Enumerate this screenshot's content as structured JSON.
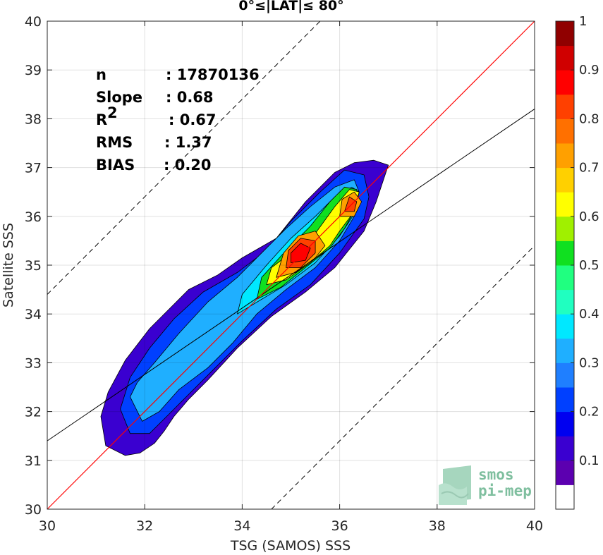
{
  "chart_data": {
    "type": "density-contour",
    "title": "0°≤|LAT|≤ 80°",
    "xlabel": "TSG (SAMOS) SSS",
    "ylabel": "Satellite SSS",
    "xlim": [
      30,
      40
    ],
    "ylim": [
      30,
      40
    ],
    "xticks": [
      "30",
      "32",
      "34",
      "36",
      "38",
      "40"
    ],
    "yticks": [
      "30",
      "31",
      "32",
      "33",
      "34",
      "35",
      "36",
      "37",
      "38",
      "39",
      "40"
    ],
    "grid": true,
    "stats": [
      {
        "label": "n",
        "value": ": 17870136"
      },
      {
        "label": "Slope",
        "value": ": 0.68"
      },
      {
        "label": "R",
        "sup": "2",
        "value": ": 0.67"
      },
      {
        "label": "RMS",
        "value": ": 1.37"
      },
      {
        "label": "BIAS",
        "value": ": 0.20"
      }
    ],
    "lines": {
      "identity": {
        "slope": 1,
        "intercept": 0,
        "color": "#ff0000"
      },
      "fit": {
        "slope": 0.68,
        "intercept": 11.0,
        "color": "#000000"
      },
      "upper_bound": {
        "slope": 1,
        "intercept": 4.4,
        "style": "dashed"
      },
      "lower_bound": {
        "slope": 1,
        "intercept": -4.6,
        "style": "dashed"
      }
    },
    "colorbar": {
      "range": [
        0,
        1
      ],
      "ticks": [
        "0.1",
        "0.2",
        "0.3",
        "0.4",
        "0.5",
        "0.6",
        "0.7",
        "0.8",
        "0.9",
        "1"
      ],
      "colors": [
        "#ffffff",
        "#5c00b0",
        "#3a00d0",
        "#0000f0",
        "#0040ff",
        "#1f7fff",
        "#1fafff",
        "#00e8ff",
        "#20ffc0",
        "#20ff80",
        "#10e020",
        "#a0f000",
        "#ffff00",
        "#ffd000",
        "#ffa000",
        "#ff7000",
        "#ff4000",
        "#ff0000",
        "#d00000",
        "#900000"
      ]
    },
    "contours": [
      {
        "level": 0.05,
        "color": "#3a00d0",
        "points": [
          [
            31.1,
            31.9
          ],
          [
            31.2,
            31.3
          ],
          [
            31.6,
            31.1
          ],
          [
            31.9,
            31.15
          ],
          [
            32.2,
            31.35
          ],
          [
            32.4,
            31.6
          ],
          [
            32.6,
            31.9
          ],
          [
            32.9,
            32.25
          ],
          [
            33.3,
            32.65
          ],
          [
            33.9,
            33.3
          ],
          [
            34.6,
            33.95
          ],
          [
            35.3,
            34.45
          ],
          [
            35.9,
            34.95
          ],
          [
            36.5,
            35.7
          ],
          [
            36.75,
            36.3
          ],
          [
            36.95,
            36.9
          ],
          [
            37.0,
            37.05
          ],
          [
            36.7,
            37.15
          ],
          [
            36.3,
            37.1
          ],
          [
            35.9,
            36.9
          ],
          [
            35.3,
            36.3
          ],
          [
            34.7,
            35.55
          ],
          [
            34.0,
            35.15
          ],
          [
            33.5,
            34.8
          ],
          [
            32.9,
            34.5
          ],
          [
            32.6,
            34.2
          ],
          [
            32.1,
            33.7
          ],
          [
            31.6,
            33.05
          ],
          [
            31.25,
            32.4
          ]
        ]
      },
      {
        "level": 0.2,
        "color": "#0040ff",
        "points": [
          [
            31.5,
            32.05
          ],
          [
            31.7,
            31.55
          ],
          [
            32.1,
            31.55
          ],
          [
            32.5,
            31.95
          ],
          [
            32.9,
            32.35
          ],
          [
            33.4,
            32.85
          ],
          [
            34.0,
            33.45
          ],
          [
            34.7,
            34.1
          ],
          [
            35.4,
            34.6
          ],
          [
            36.0,
            35.25
          ],
          [
            36.5,
            35.95
          ],
          [
            36.6,
            36.4
          ],
          [
            36.5,
            36.85
          ],
          [
            36.1,
            36.95
          ],
          [
            35.6,
            36.5
          ],
          [
            35.0,
            35.9
          ],
          [
            34.5,
            35.3
          ],
          [
            33.9,
            34.85
          ],
          [
            33.2,
            34.45
          ],
          [
            32.6,
            33.9
          ],
          [
            32.1,
            33.3
          ],
          [
            31.7,
            32.7
          ]
        ]
      },
      {
        "level": 0.3,
        "color": "#1fafff",
        "points": [
          [
            31.7,
            32.3
          ],
          [
            31.95,
            31.8
          ],
          [
            32.3,
            32.0
          ],
          [
            32.7,
            32.45
          ],
          [
            33.3,
            32.9
          ],
          [
            33.8,
            33.4
          ],
          [
            34.3,
            34.0
          ],
          [
            34.9,
            34.5
          ],
          [
            35.5,
            34.95
          ],
          [
            36.0,
            35.5
          ],
          [
            36.3,
            36.0
          ],
          [
            36.4,
            36.5
          ],
          [
            36.3,
            36.75
          ],
          [
            35.9,
            36.6
          ],
          [
            35.4,
            36.2
          ],
          [
            34.9,
            35.75
          ],
          [
            34.4,
            35.25
          ],
          [
            33.9,
            34.75
          ],
          [
            33.3,
            34.25
          ],
          [
            32.7,
            33.6
          ],
          [
            32.2,
            33.0
          ],
          [
            31.85,
            32.6
          ]
        ]
      },
      {
        "level": 0.4,
        "color": "#00e8ff",
        "points": [
          [
            33.9,
            34.0
          ],
          [
            34.4,
            34.3
          ],
          [
            34.9,
            34.6
          ],
          [
            35.5,
            35.05
          ],
          [
            36.0,
            35.6
          ],
          [
            36.3,
            36.05
          ],
          [
            36.4,
            36.5
          ],
          [
            36.25,
            36.6
          ],
          [
            35.9,
            36.4
          ],
          [
            35.5,
            36.0
          ],
          [
            35.0,
            35.55
          ],
          [
            34.5,
            35.0
          ],
          [
            34.0,
            34.4
          ]
        ]
      },
      {
        "level": 0.5,
        "color": "#10e020",
        "points": [
          [
            34.3,
            34.3
          ],
          [
            34.8,
            34.55
          ],
          [
            35.3,
            34.95
          ],
          [
            35.8,
            35.35
          ],
          [
            36.1,
            35.75
          ],
          [
            36.35,
            36.2
          ],
          [
            36.35,
            36.55
          ],
          [
            36.1,
            36.6
          ],
          [
            35.8,
            36.3
          ],
          [
            35.4,
            35.8
          ],
          [
            34.9,
            35.3
          ],
          [
            34.4,
            34.75
          ]
        ]
      },
      {
        "level": 0.6,
        "color": "#ffff00",
        "points": [
          [
            34.5,
            34.6
          ],
          [
            34.9,
            34.7
          ],
          [
            35.4,
            35.05
          ],
          [
            35.8,
            35.4
          ],
          [
            36.0,
            35.7
          ],
          [
            36.3,
            36.1
          ],
          [
            36.4,
            36.5
          ],
          [
            36.2,
            36.55
          ],
          [
            35.9,
            36.2
          ],
          [
            35.5,
            35.65
          ],
          [
            35.0,
            35.25
          ],
          [
            34.6,
            34.95
          ]
        ]
      },
      {
        "level": 0.7,
        "color": "#ffa000",
        "points": [
          [
            34.7,
            34.75
          ],
          [
            35.1,
            34.85
          ],
          [
            35.5,
            35.15
          ],
          [
            35.7,
            35.4
          ],
          [
            35.5,
            35.7
          ],
          [
            35.15,
            35.6
          ],
          [
            34.85,
            35.25
          ]
        ]
      },
      {
        "level": 0.7,
        "color": "#ffa000",
        "points": [
          [
            36.0,
            36.0
          ],
          [
            36.3,
            36.0
          ],
          [
            36.45,
            36.3
          ],
          [
            36.3,
            36.5
          ],
          [
            36.05,
            36.35
          ]
        ]
      },
      {
        "level": 0.8,
        "color": "#ff4000",
        "points": [
          [
            34.9,
            34.95
          ],
          [
            35.2,
            34.95
          ],
          [
            35.5,
            35.25
          ],
          [
            35.5,
            35.5
          ],
          [
            35.2,
            35.55
          ],
          [
            34.95,
            35.3
          ]
        ]
      },
      {
        "level": 0.8,
        "color": "#ff4000",
        "points": [
          [
            36.1,
            36.1
          ],
          [
            36.3,
            36.1
          ],
          [
            36.35,
            36.3
          ],
          [
            36.2,
            36.4
          ]
        ]
      },
      {
        "level": 0.9,
        "color": "#ff0000",
        "points": [
          [
            35.0,
            35.05
          ],
          [
            35.3,
            35.1
          ],
          [
            35.4,
            35.35
          ],
          [
            35.2,
            35.45
          ],
          [
            35.0,
            35.25
          ]
        ]
      }
    ]
  },
  "logo": {
    "line1": "smos",
    "line2": "pi-mep"
  }
}
